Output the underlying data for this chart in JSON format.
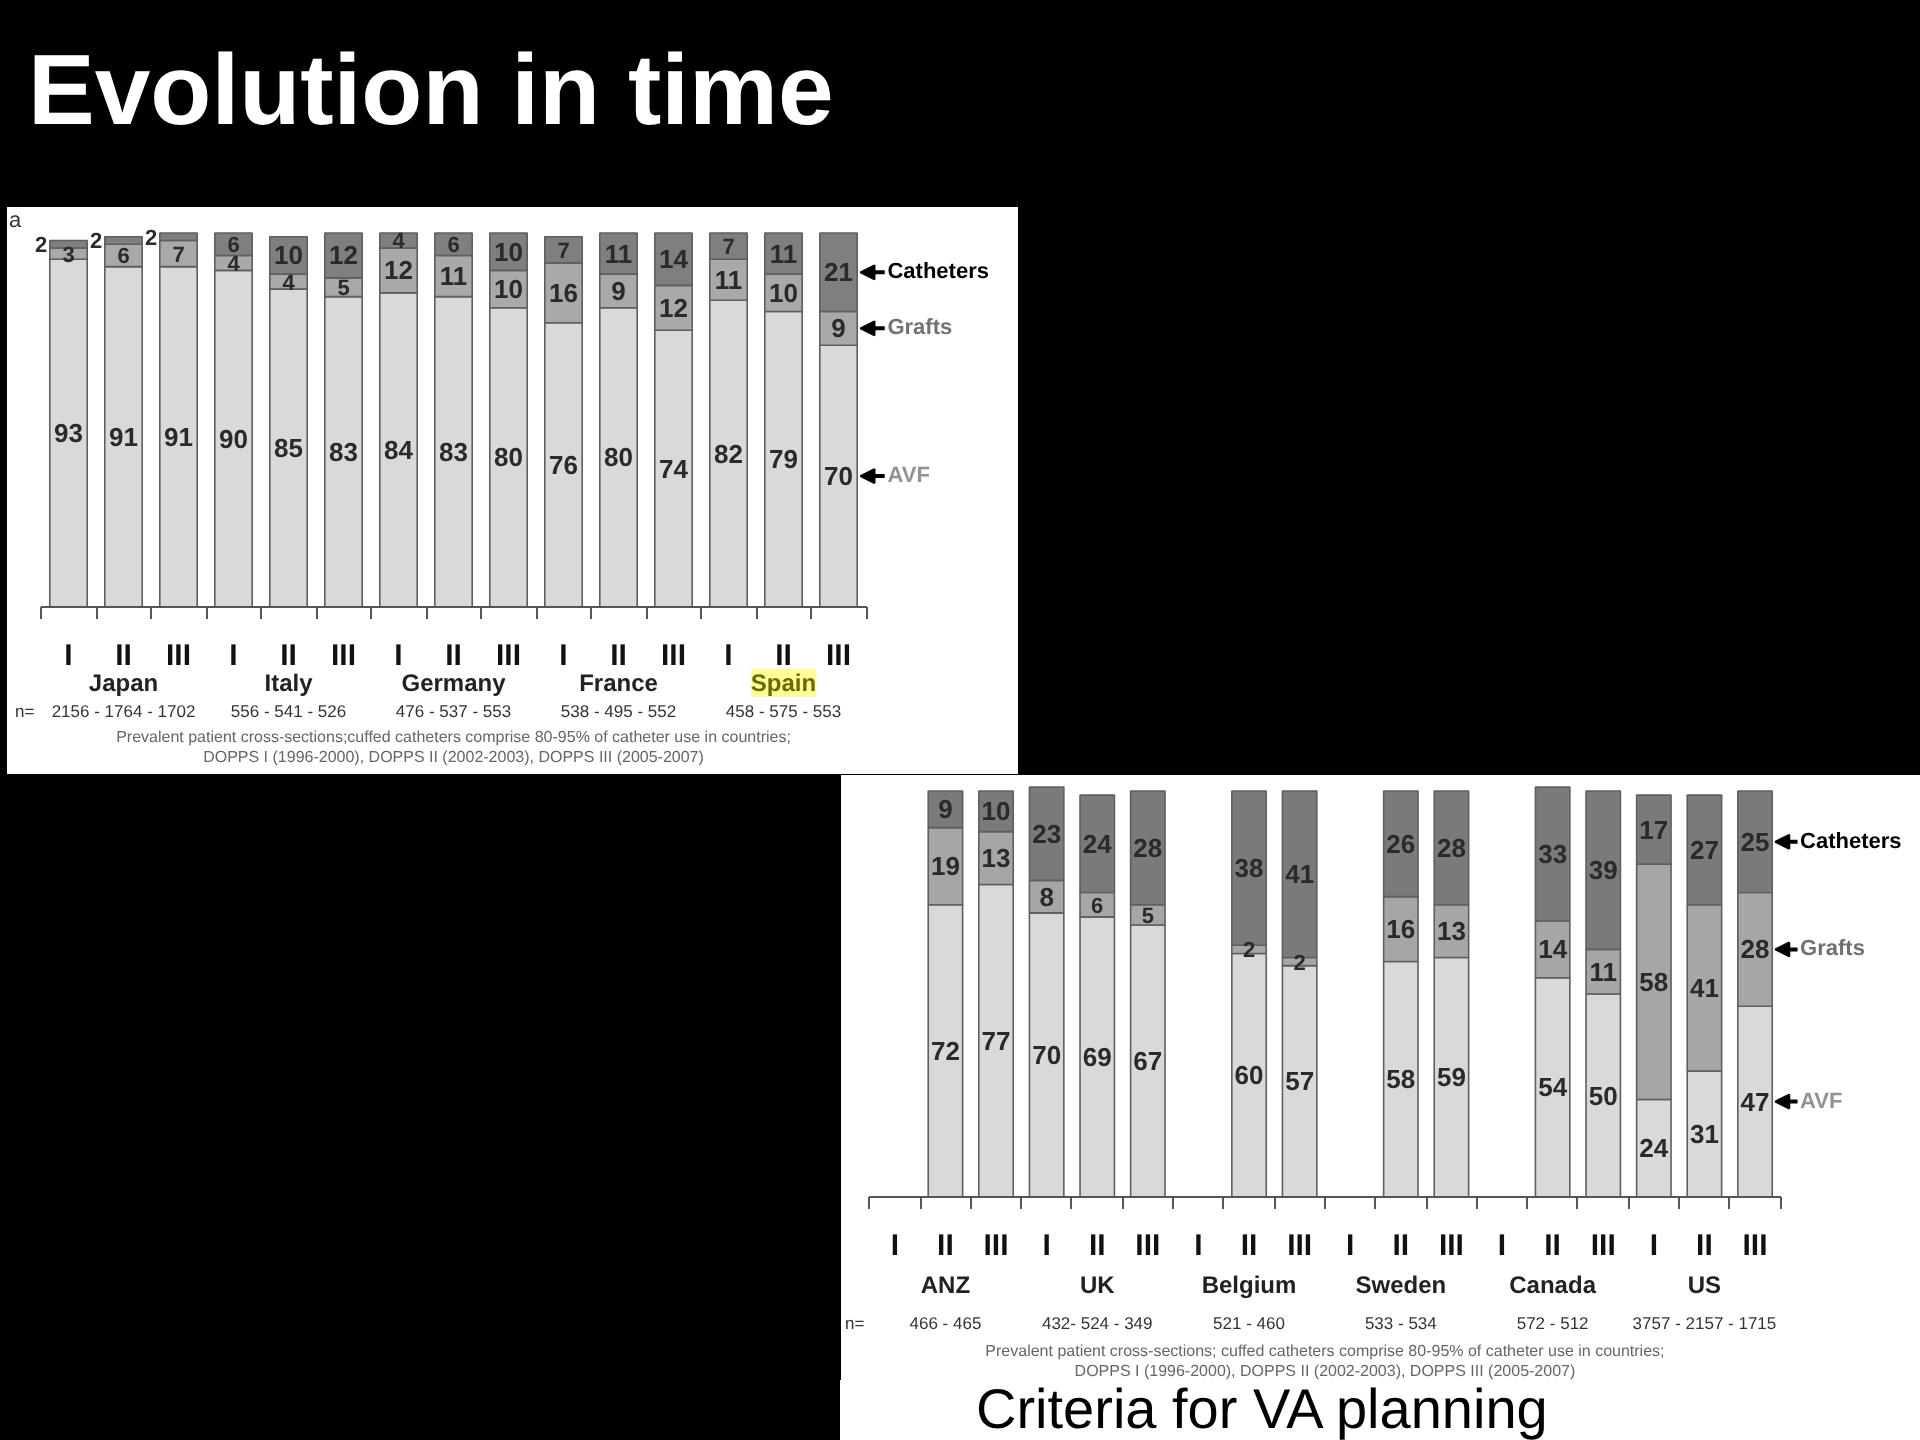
{
  "chart_data": [
    {
      "type": "bar",
      "stacked": true,
      "title": "Evolution in time",
      "categories": [
        "I",
        "II",
        "III",
        "I",
        "II",
        "III",
        "I",
        "II",
        "III",
        "I",
        "II",
        "III",
        "I",
        "II",
        "III"
      ],
      "series": [
        {
          "name": "AVF",
          "color": "#d9d9d9",
          "values": [
            93,
            91,
            91,
            90,
            85,
            83,
            84,
            83,
            80,
            76,
            80,
            74,
            82,
            79,
            70
          ]
        },
        {
          "name": "Grafts",
          "color": "#a9a9a9",
          "values": [
            3,
            6,
            7,
            4,
            4,
            5,
            12,
            11,
            10,
            16,
            9,
            12,
            11,
            10,
            9
          ]
        },
        {
          "name": "Catheters",
          "color": "#7f7f7f",
          "values": [
            2,
            2,
            2,
            6,
            10,
            12,
            4,
            6,
            10,
            7,
            11,
            14,
            7,
            11,
            21
          ]
        }
      ],
      "ylim": [
        0,
        100
      ],
      "tick_labels": "x",
      "data_labels": true,
      "annotations": [
        "Japan",
        "Italy",
        "Germany",
        "France",
        "Spain",
        "n=",
        "2156 - 1764 - 1702",
        "556 - 541 - 526",
        "476 - 537 - 553",
        "538 - 495 - 552",
        "458 - 575 - 553",
        "Prevalent patient cross-sections;cuffed catheters comprise 80-95% of catheter use in countries;",
        "DOPPS I (1996-2000), DOPPS II (2002-2003), DOPPS III (2005-2007)",
        "a"
      ]
    },
    {
      "type": "bar",
      "stacked": true,
      "categories": [
        "I",
        "II",
        "III",
        "I",
        "II",
        "III",
        "I",
        "II",
        "III",
        "I",
        "II",
        "III",
        "I",
        "II",
        "III",
        "I",
        "II",
        "III"
      ],
      "series": [
        {
          "name": "AVF",
          "color": "#d9d9d9",
          "values": [
            null,
            72,
            77,
            70,
            69,
            67,
            null,
            60,
            57,
            null,
            58,
            59,
            null,
            54,
            50,
            24,
            31,
            47
          ]
        },
        {
          "name": "Grafts",
          "color": "#a6a6a6",
          "values": [
            null,
            19,
            13,
            8,
            6,
            5,
            null,
            2,
            2,
            null,
            16,
            13,
            null,
            14,
            11,
            58,
            41,
            28
          ]
        },
        {
          "name": "Catheters",
          "color": "#7a7a7a",
          "values": [
            null,
            9,
            10,
            23,
            24,
            28,
            null,
            38,
            41,
            null,
            26,
            28,
            null,
            33,
            39,
            17,
            27,
            25
          ]
        }
      ],
      "ylim": [
        0,
        101
      ],
      "tick_labels": "x",
      "data_labels": true,
      "annotations": [
        "ANZ",
        "UK",
        "Belgium",
        "Sweden",
        "Canada",
        "US",
        "n=",
        "466 - 465",
        "432- 524 - 349",
        "521 - 460",
        "533 - 534",
        "572 - 512",
        "3757 - 2157 - 1715",
        "Prevalent patient cross-sections; cuffed catheters comprise 80-95% of catheter use in countries;",
        "DOPPS I (1996-2000), DOPPS II (2002-2003), DOPPS III (2005-2007)",
        "Criteria for VA planning"
      ]
    }
  ]
}
